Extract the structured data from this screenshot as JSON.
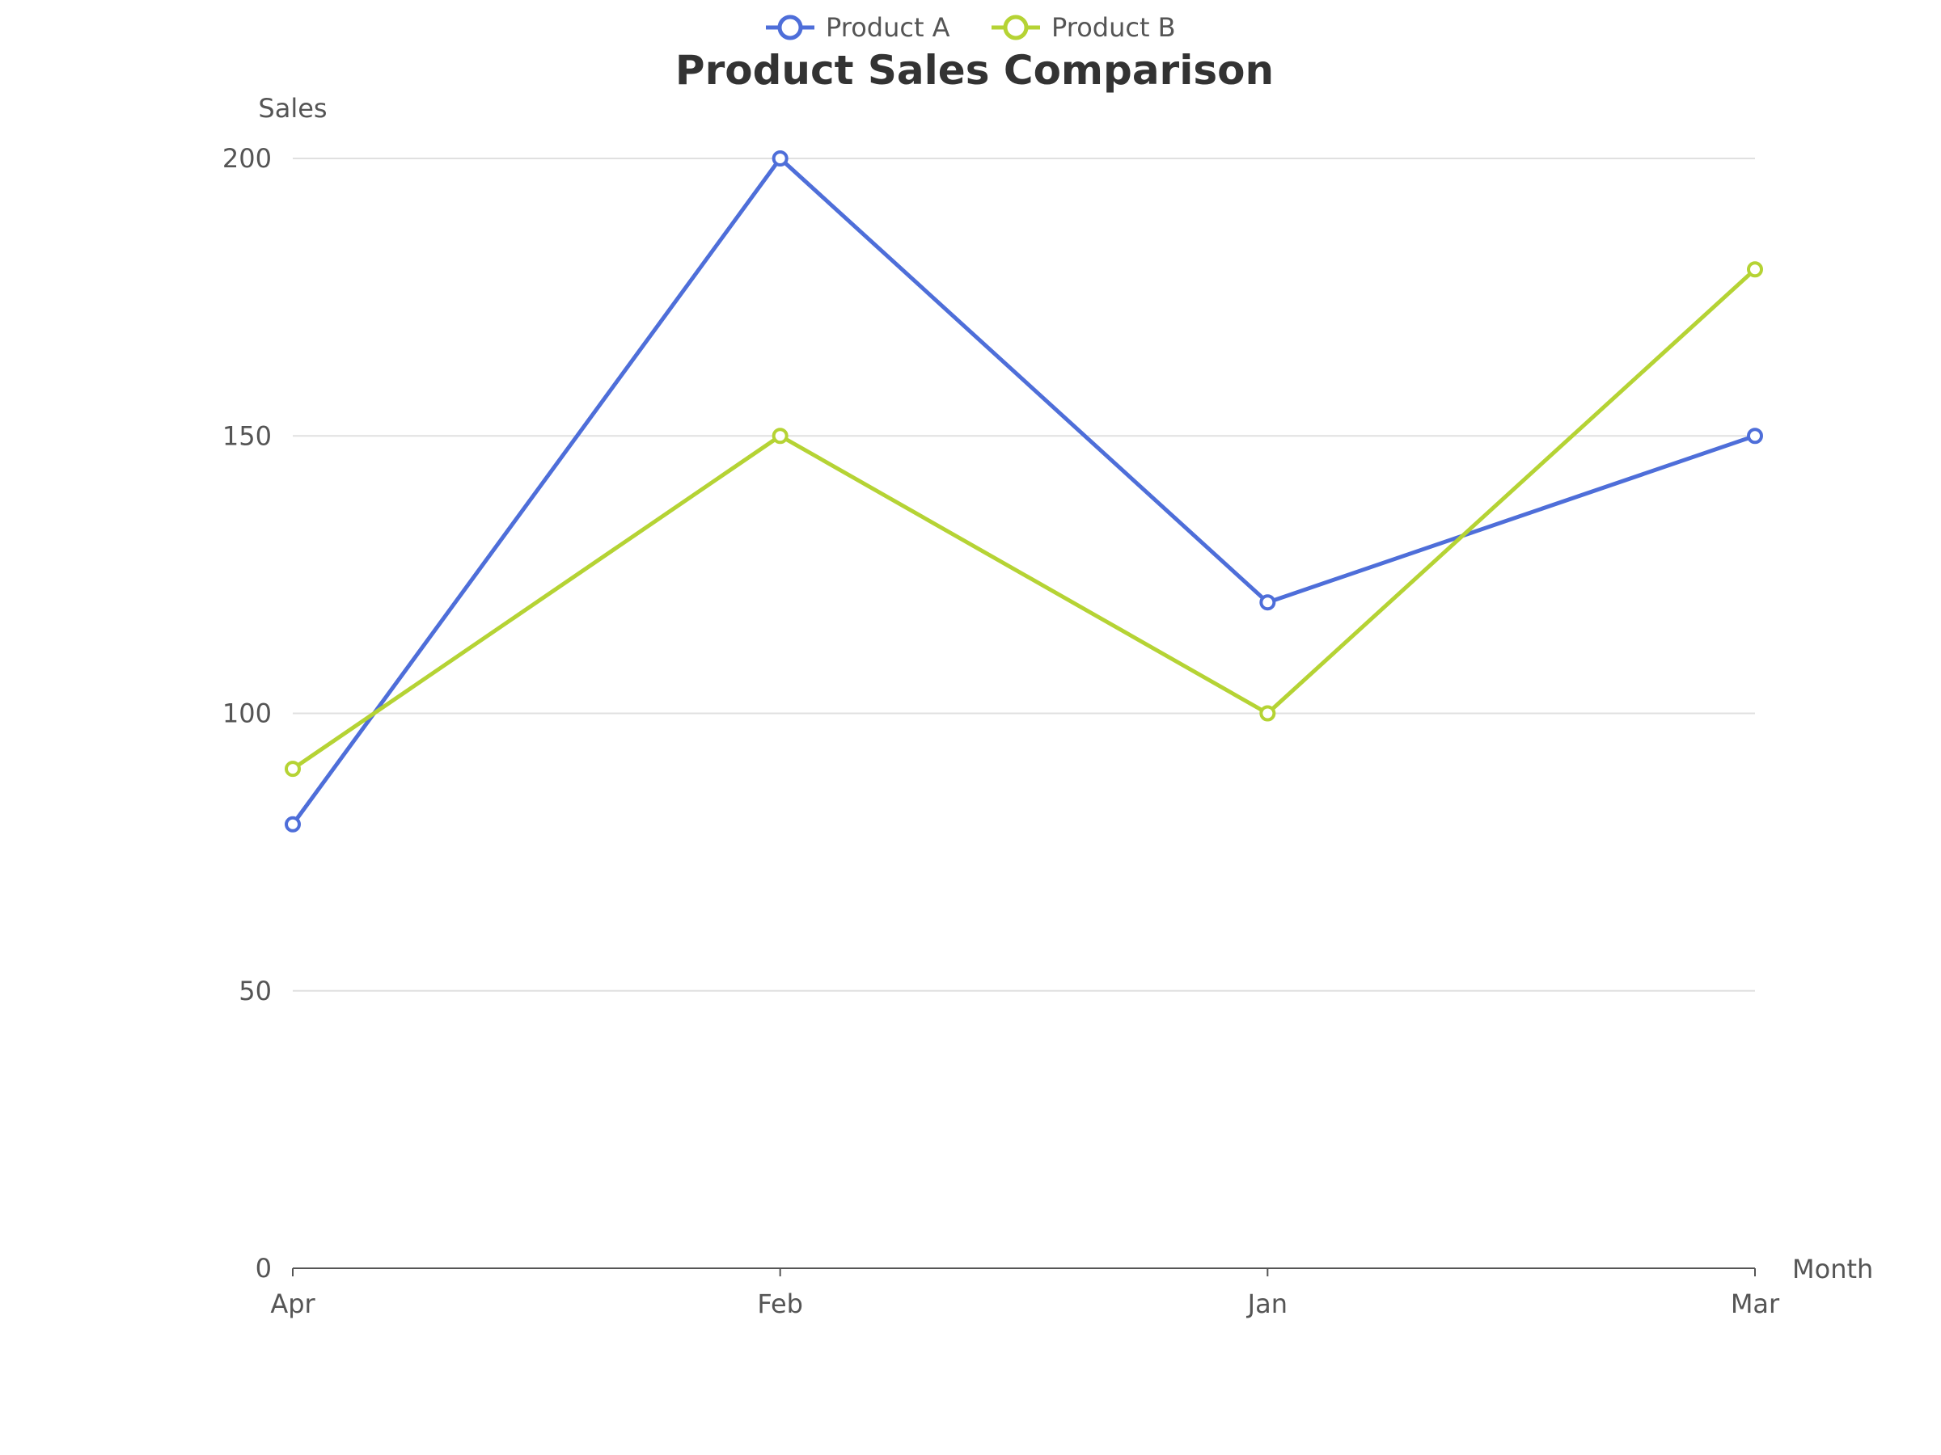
{
  "chart_data": {
    "type": "line",
    "title": "Product Sales Comparison",
    "xlabel": "Month",
    "ylabel": "Sales",
    "categories": [
      "Apr",
      "Feb",
      "Jan",
      "Mar"
    ],
    "series": [
      {
        "name": "Product A",
        "values": [
          80,
          200,
          120,
          150
        ],
        "color": "#4e6ed9"
      },
      {
        "name": "Product B",
        "values": [
          90,
          150,
          100,
          180
        ],
        "color": "#b5d334"
      }
    ],
    "ylim": [
      0,
      200
    ],
    "yticks": [
      0,
      50,
      100,
      150,
      200
    ],
    "grid": true,
    "legend": "top-center"
  }
}
